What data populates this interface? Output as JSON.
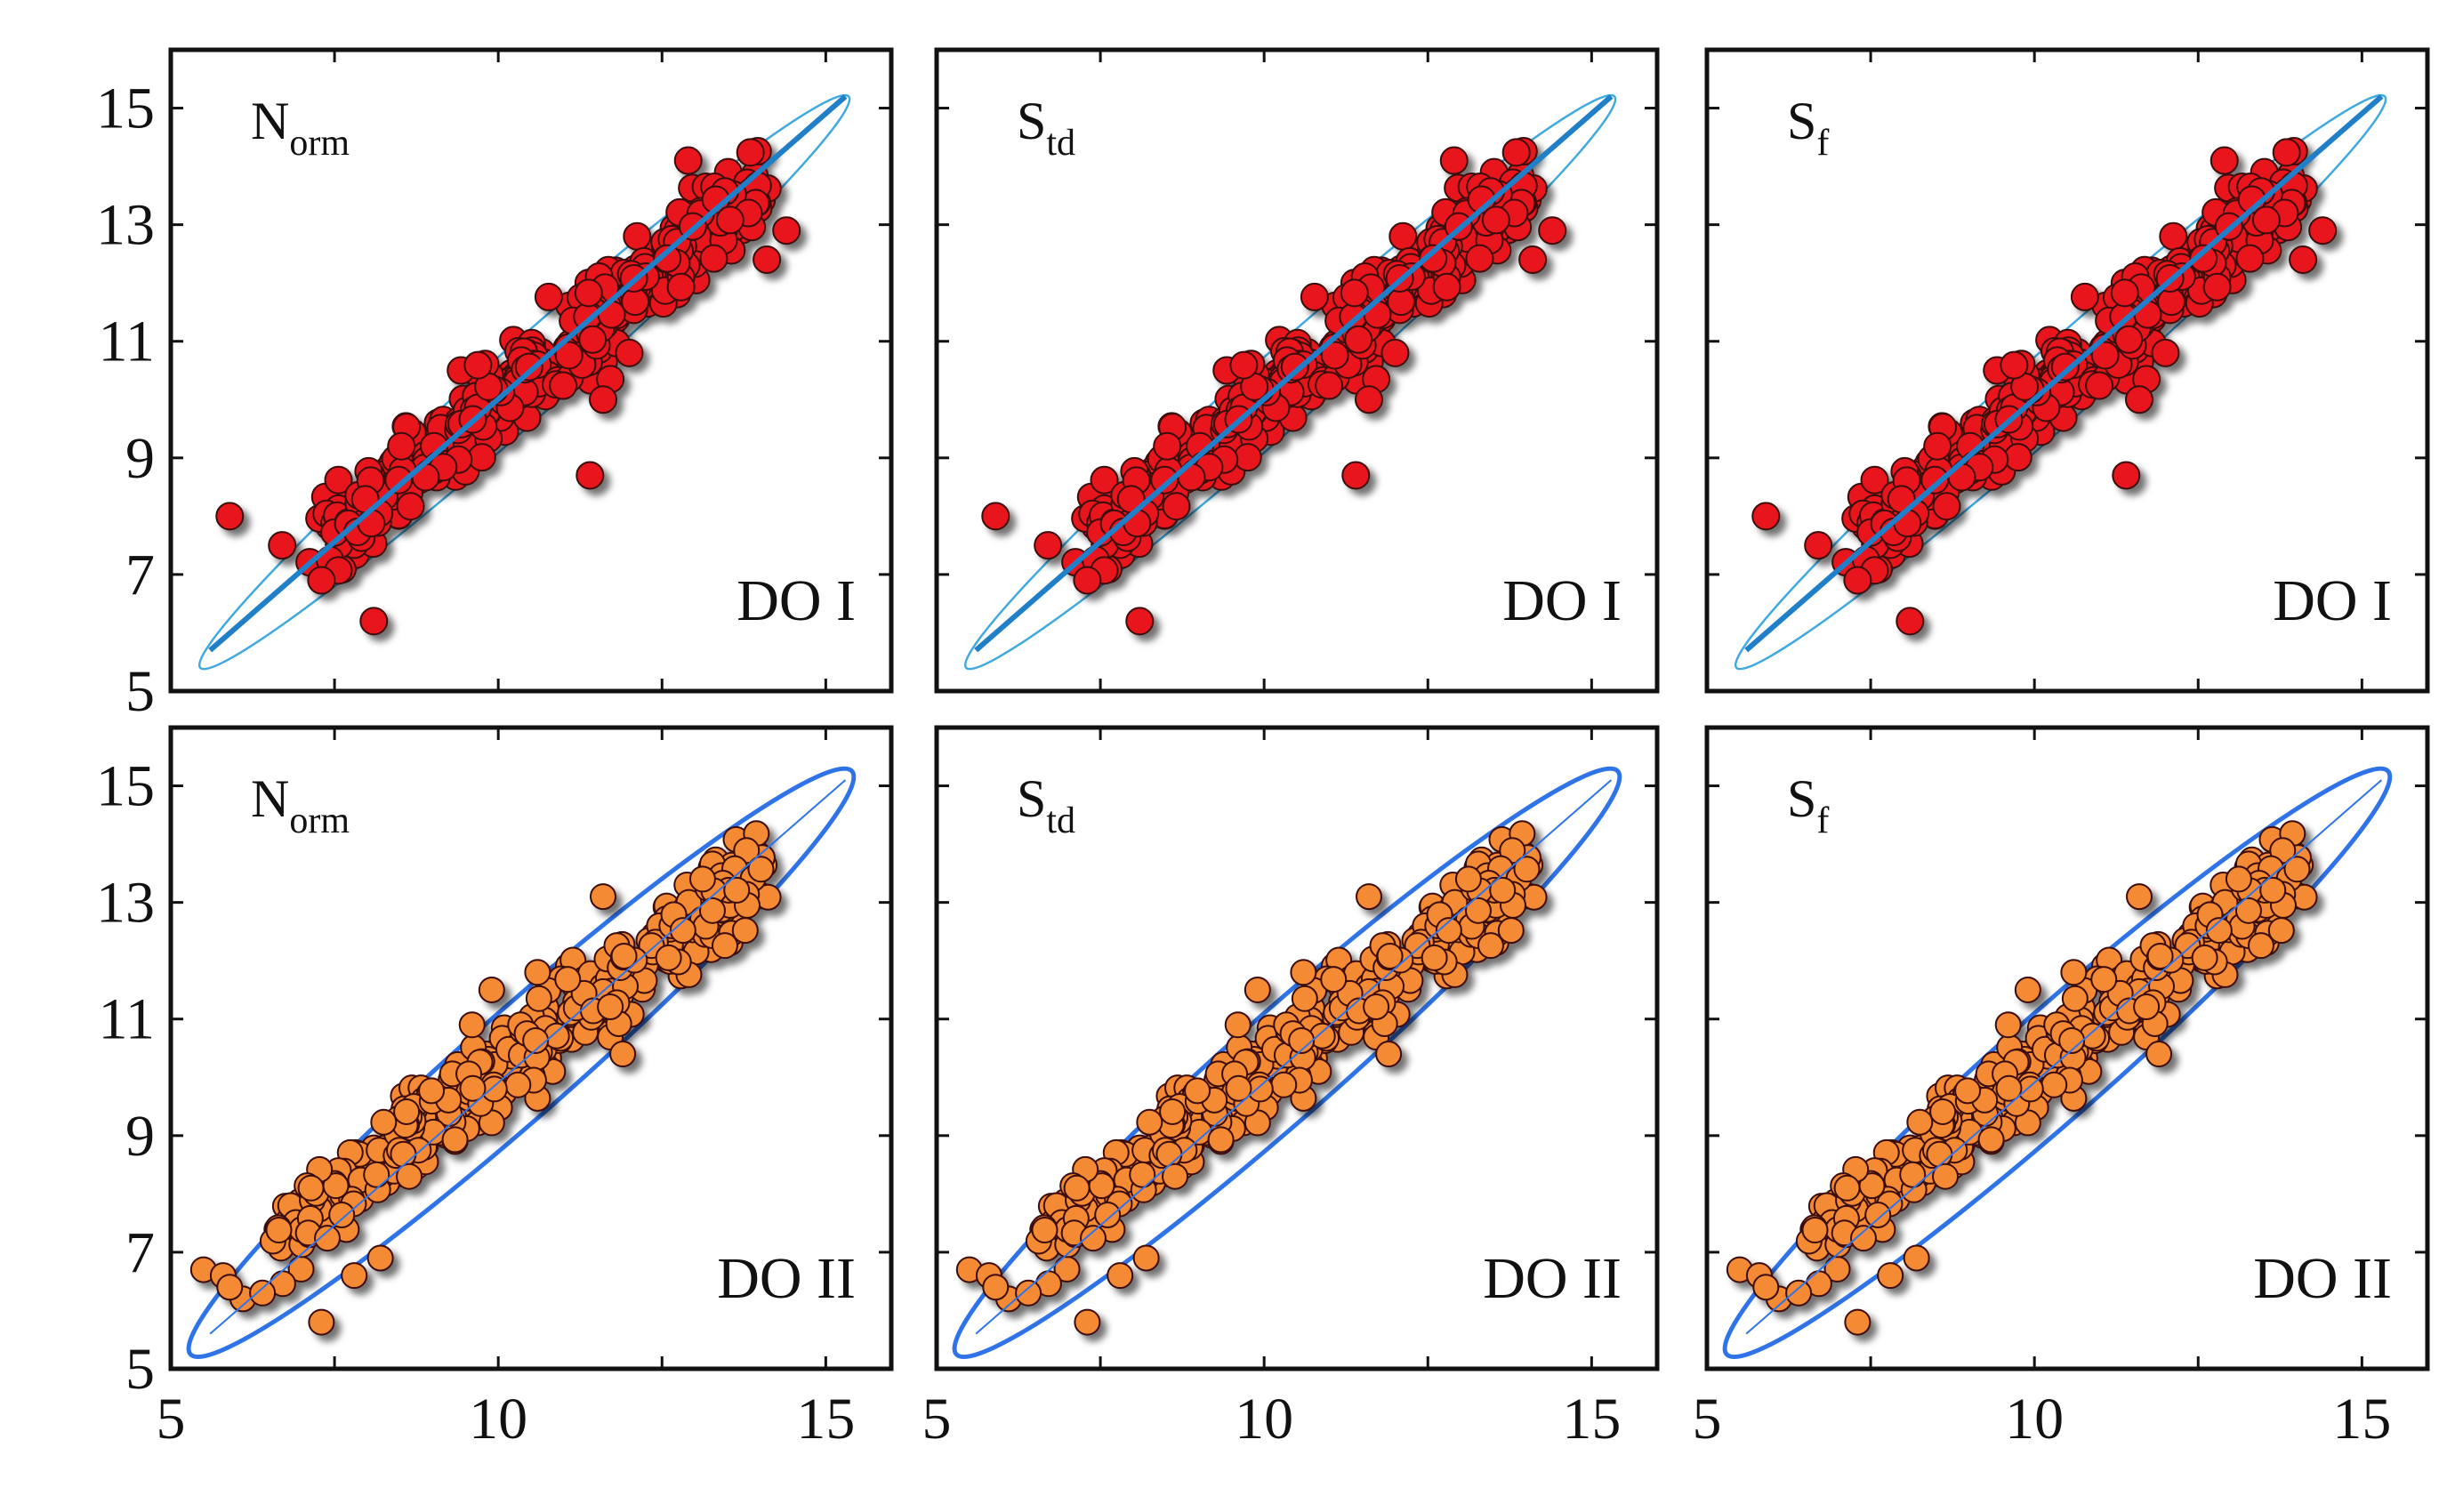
{
  "chart_data": {
    "type": "scatter",
    "layout": "2 rows x 3 columns, shared axes",
    "x_axis": {
      "ticks": [
        5,
        10,
        15
      ],
      "range": [
        5,
        16
      ]
    },
    "y_axis": {
      "ticks": [
        5,
        7,
        9,
        11,
        13,
        15
      ],
      "range": [
        5,
        16
      ]
    },
    "colors": {
      "do1_marker": "#e8141a",
      "do2_marker": "#f58a36",
      "marker_edge": "#3a0a0a",
      "fit_line_do1": "#1f7fc8",
      "ellipse_do1": "#3fa9e0",
      "ellipse_do2": "#2f73e8"
    },
    "row_labels": [
      "DO I",
      "DO II"
    ],
    "column_labels": [
      {
        "main": "N",
        "sub": "orm"
      },
      {
        "main": "S",
        "sub": "td"
      },
      {
        "main": "S",
        "sub": "f"
      }
    ],
    "fit_line": {
      "x": [
        5.6,
        15.3
      ],
      "y": [
        5.7,
        15.2
      ]
    },
    "ellipse_do1": {
      "center": [
        10.4,
        10.3
      ],
      "major_endpoints": [
        [
          5.5,
          5.55
        ],
        [
          15.4,
          15.35
        ]
      ],
      "minor_half_width": 0.55
    },
    "ellipse_do2": {
      "center": [
        10.35,
        10.25
      ],
      "major_endpoints": [
        [
          5.3,
          5.25
        ],
        [
          15.4,
          15.25
        ]
      ],
      "minor_half_width": 0.8
    },
    "series_do1": {
      "name": "DO I",
      "bulk_trend": {
        "x_start": 7.4,
        "x_end": 14.0,
        "y_start": 7.6,
        "y_end": 13.7,
        "spread": 0.55
      },
      "outliers": [
        {
          "x": 5.9,
          "y": 8.0
        },
        {
          "x": 6.7,
          "y": 7.5
        },
        {
          "x": 7.3,
          "y": 6.9
        },
        {
          "x": 8.1,
          "y": 6.2
        },
        {
          "x": 11.4,
          "y": 8.7
        },
        {
          "x": 12.0,
          "y": 10.8
        },
        {
          "x": 11.6,
          "y": 10.0
        },
        {
          "x": 14.1,
          "y": 12.4
        },
        {
          "x": 14.4,
          "y": 12.9
        },
        {
          "x": 12.9,
          "y": 14.1
        }
      ]
    },
    "series_do2": {
      "name": "DO II",
      "bulk_trend": {
        "x_start": 6.6,
        "x_end": 14.1,
        "y_start": 7.2,
        "y_end": 13.6,
        "spread": 0.6
      },
      "outliers": [
        {
          "x": 5.5,
          "y": 6.7
        },
        {
          "x": 5.8,
          "y": 6.6
        },
        {
          "x": 6.1,
          "y": 6.2
        },
        {
          "x": 5.9,
          "y": 6.4
        },
        {
          "x": 6.4,
          "y": 6.3
        },
        {
          "x": 7.3,
          "y": 5.8
        },
        {
          "x": 7.8,
          "y": 6.6
        },
        {
          "x": 8.2,
          "y": 6.9
        },
        {
          "x": 9.9,
          "y": 11.5
        },
        {
          "x": 9.6,
          "y": 10.9
        },
        {
          "x": 10.6,
          "y": 11.8
        },
        {
          "x": 11.6,
          "y": 13.1
        },
        {
          "x": 11.9,
          "y": 10.4
        }
      ]
    }
  }
}
